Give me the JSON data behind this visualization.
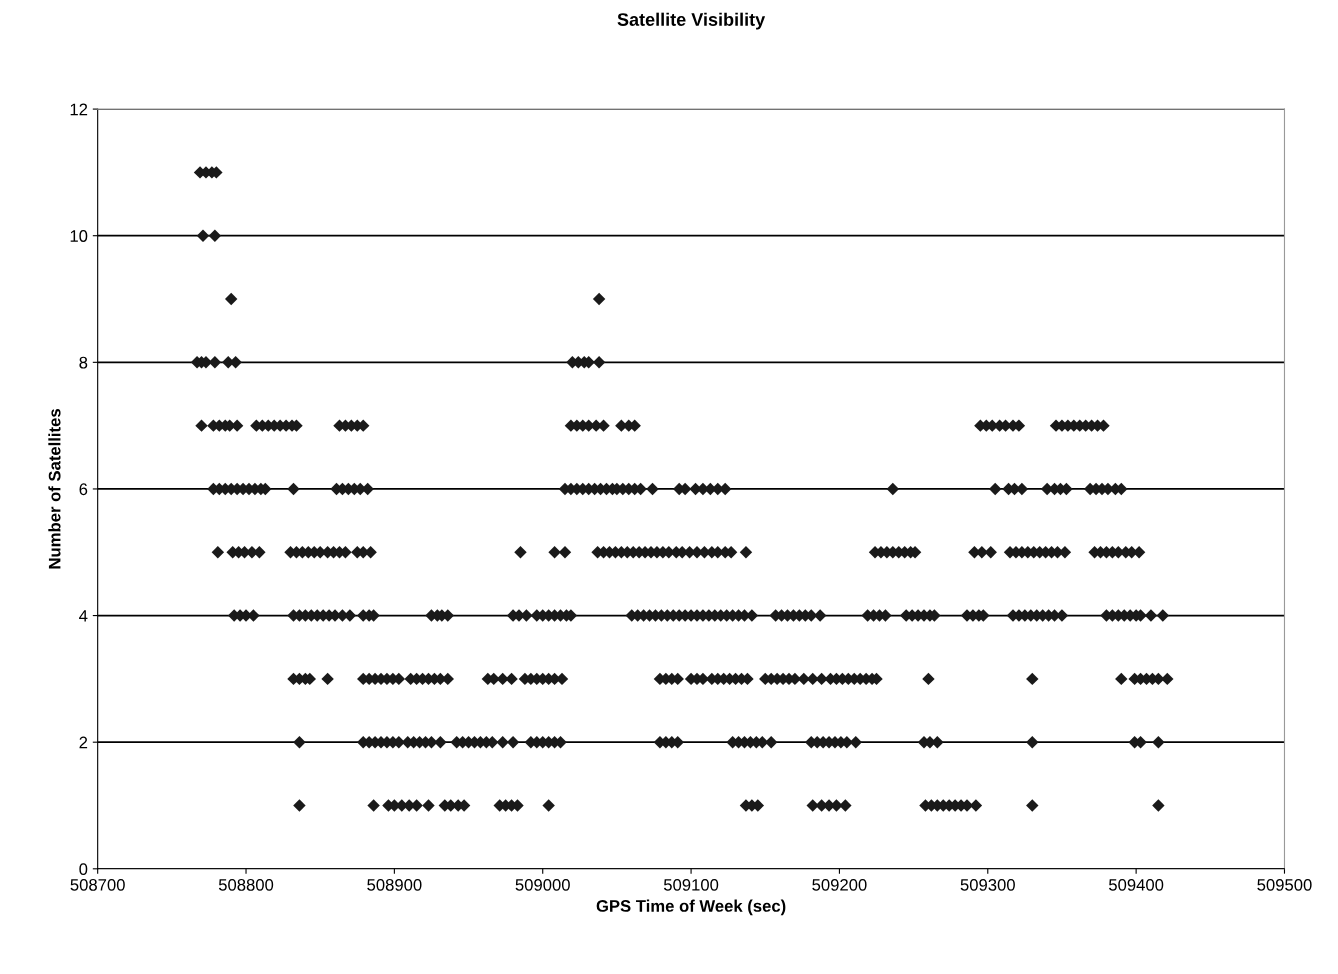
{
  "chart_data": {
    "type": "scatter",
    "title": "Satellite Visibility",
    "xlabel": "GPS Time of Week (sec)",
    "ylabel": "Number of Satellites",
    "xlim": [
      508700,
      509500
    ],
    "xticks": [
      508700,
      508800,
      508900,
      509000,
      509100,
      509200,
      509300,
      509400,
      509500
    ],
    "ylim": [
      0,
      12
    ],
    "yticks": [
      0,
      2,
      4,
      6,
      8,
      10,
      12
    ],
    "grid": "y",
    "marker": "diamond",
    "series": [
      {
        "color": "#1a1a1a",
        "x": [
          508769,
          508773,
          508777,
          508780
        ],
        "values": [
          11,
          11,
          11,
          11
        ]
      },
      {
        "color": "#1a1a1a",
        "x": [
          508771,
          508779
        ],
        "values": [
          10,
          10
        ]
      },
      {
        "color": "#1a1a1a",
        "x": [
          508790,
          509038
        ],
        "values": [
          9,
          9
        ]
      },
      {
        "color": "#1a1a1a",
        "x": [
          508767,
          508770,
          508773,
          508779,
          508788,
          508793,
          509020,
          509024,
          509028,
          509031,
          509038
        ],
        "values": [
          8,
          8,
          8,
          8,
          8,
          8,
          8,
          8,
          8,
          8,
          8
        ]
      },
      {
        "color": "#1a1a1a",
        "x": [
          508770,
          508778,
          508782,
          508786,
          508789,
          508794,
          508807,
          508811,
          508815,
          508819,
          508823,
          508827,
          508831,
          508834,
          508863,
          508867,
          508871,
          508875,
          508879,
          509019,
          509023,
          509027,
          509031,
          509036,
          509041,
          509053,
          509058,
          509062,
          509295,
          509299,
          509303,
          509308,
          509312,
          509317,
          509321,
          509346,
          509350,
          509354,
          509358,
          509362,
          509366,
          509370,
          509374,
          509378
        ],
        "values": [
          7,
          7,
          7,
          7,
          7,
          7,
          7,
          7,
          7,
          7,
          7,
          7,
          7,
          7,
          7,
          7,
          7,
          7,
          7,
          7,
          7,
          7,
          7,
          7,
          7,
          7,
          7,
          7,
          7,
          7,
          7,
          7,
          7,
          7,
          7,
          7,
          7,
          7,
          7,
          7,
          7,
          7,
          7,
          7
        ]
      },
      {
        "color": "#1a1a1a",
        "x": [
          508778,
          508782,
          508786,
          508790,
          508794,
          508798,
          508802,
          508806,
          508810,
          508813,
          508832,
          508861,
          508865,
          508869,
          508873,
          508877,
          508882,
          509015,
          509019,
          509023,
          509027,
          509031,
          509035,
          509039,
          509043,
          509047,
          509050,
          509054,
          509058,
          509062,
          509066,
          509074,
          509092,
          509096,
          509103,
          509108,
          509113,
          509118,
          509123,
          509236,
          509305,
          509314,
          509318,
          509323,
          509340,
          509345,
          509349,
          509353,
          509369,
          509373,
          509377,
          509381,
          509386,
          509390
        ],
        "values": [
          6,
          6,
          6,
          6,
          6,
          6,
          6,
          6,
          6,
          6,
          6,
          6,
          6,
          6,
          6,
          6,
          6,
          6,
          6,
          6,
          6,
          6,
          6,
          6,
          6,
          6,
          6,
          6,
          6,
          6,
          6,
          6,
          6,
          6,
          6,
          6,
          6,
          6,
          6,
          6,
          6,
          6,
          6,
          6,
          6,
          6,
          6,
          6,
          6,
          6,
          6,
          6,
          6,
          6
        ]
      },
      {
        "color": "#1a1a1a",
        "x": [
          508781,
          508791,
          508795,
          508799,
          508804,
          508809,
          508830,
          508834,
          508838,
          508842,
          508846,
          508850,
          508855,
          508859,
          508863,
          508867,
          508875,
          508879,
          508884,
          508985,
          509008,
          509015,
          509037,
          509041,
          509045,
          509049,
          509053,
          509057,
          509061,
          509065,
          509069,
          509073,
          509077,
          509081,
          509085,
          509090,
          509094,
          509099,
          509104,
          509109,
          509114,
          509118,
          509123,
          509127,
          509137,
          509224,
          509228,
          509232,
          509236,
          509240,
          509244,
          509248,
          509251,
          509291,
          509296,
          509302,
          509315,
          509319,
          509323,
          509327,
          509331,
          509335,
          509339,
          509343,
          509347,
          509352,
          509372,
          509376,
          509380,
          509384,
          509388,
          509393,
          509397,
          509402
        ],
        "values": [
          5,
          5,
          5,
          5,
          5,
          5,
          5,
          5,
          5,
          5,
          5,
          5,
          5,
          5,
          5,
          5,
          5,
          5,
          5,
          5,
          5,
          5,
          5,
          5,
          5,
          5,
          5,
          5,
          5,
          5,
          5,
          5,
          5,
          5,
          5,
          5,
          5,
          5,
          5,
          5,
          5,
          5,
          5,
          5,
          5,
          5,
          5,
          5,
          5,
          5,
          5,
          5,
          5,
          5,
          5,
          5,
          5,
          5,
          5,
          5,
          5,
          5,
          5,
          5,
          5,
          5,
          5,
          5,
          5,
          5,
          5,
          5,
          5,
          5
        ]
      },
      {
        "color": "#1a1a1a",
        "x": [
          508792,
          508796,
          508800,
          508805,
          508832,
          508836,
          508840,
          508844,
          508848,
          508852,
          508856,
          508860,
          508865,
          508870,
          508879,
          508883,
          508886,
          508925,
          508929,
          508932,
          508936,
          508980,
          508984,
          508989,
          508996,
          509000,
          509004,
          509008,
          509012,
          509016,
          509019,
          509060,
          509064,
          509068,
          509072,
          509076,
          509080,
          509084,
          509088,
          509092,
          509096,
          509100,
          509104,
          509108,
          509112,
          509116,
          509120,
          509124,
          509128,
          509132,
          509136,
          509141,
          509157,
          509161,
          509165,
          509169,
          509173,
          509177,
          509181,
          509187,
          509219,
          509223,
          509227,
          509231,
          509245,
          509249,
          509253,
          509257,
          509261,
          509264,
          509286,
          509290,
          509294,
          509297,
          509317,
          509321,
          509325,
          509329,
          509333,
          509337,
          509341,
          509345,
          509350,
          509380,
          509384,
          509388,
          509392,
          509396,
          509400,
          509403,
          509410,
          509418
        ],
        "values": [
          4,
          4,
          4,
          4,
          4,
          4,
          4,
          4,
          4,
          4,
          4,
          4,
          4,
          4,
          4,
          4,
          4,
          4,
          4,
          4,
          4,
          4,
          4,
          4,
          4,
          4,
          4,
          4,
          4,
          4,
          4,
          4,
          4,
          4,
          4,
          4,
          4,
          4,
          4,
          4,
          4,
          4,
          4,
          4,
          4,
          4,
          4,
          4,
          4,
          4,
          4,
          4,
          4,
          4,
          4,
          4,
          4,
          4,
          4,
          4,
          4,
          4,
          4,
          4,
          4,
          4,
          4,
          4,
          4,
          4,
          4,
          4,
          4,
          4,
          4,
          4,
          4,
          4,
          4,
          4,
          4,
          4,
          4,
          4,
          4,
          4,
          4,
          4,
          4,
          4,
          4,
          4
        ]
      },
      {
        "color": "#1a1a1a",
        "x": [
          508832,
          508836,
          508840,
          508843,
          508855,
          508879,
          508883,
          508887,
          508891,
          508895,
          508899,
          508903,
          508911,
          508915,
          508919,
          508923,
          508927,
          508931,
          508936,
          508963,
          508967,
          508973,
          508979,
          508988,
          508992,
          508996,
          509000,
          509004,
          509008,
          509013,
          509079,
          509083,
          509087,
          509091,
          509100,
          509104,
          509108,
          509114,
          509118,
          509122,
          509126,
          509130,
          509134,
          509138,
          509150,
          509154,
          509158,
          509162,
          509166,
          509170,
          509176,
          509182,
          509188,
          509194,
          509198,
          509202,
          509206,
          509210,
          509214,
          509218,
          509222,
          509225,
          509260,
          509330,
          509390,
          509399,
          509403,
          509407,
          509411,
          509415,
          509421
        ],
        "values": [
          3,
          3,
          3,
          3,
          3,
          3,
          3,
          3,
          3,
          3,
          3,
          3,
          3,
          3,
          3,
          3,
          3,
          3,
          3,
          3,
          3,
          3,
          3,
          3,
          3,
          3,
          3,
          3,
          3,
          3,
          3,
          3,
          3,
          3,
          3,
          3,
          3,
          3,
          3,
          3,
          3,
          3,
          3,
          3,
          3,
          3,
          3,
          3,
          3,
          3,
          3,
          3,
          3,
          3,
          3,
          3,
          3,
          3,
          3,
          3,
          3,
          3,
          3,
          3,
          3,
          3,
          3,
          3,
          3,
          3,
          3
        ]
      },
      {
        "color": "#1a1a1a",
        "x": [
          508836,
          508879,
          508883,
          508887,
          508891,
          508895,
          508899,
          508903,
          508909,
          508913,
          508917,
          508921,
          508925,
          508931,
          508942,
          508946,
          508950,
          508954,
          508958,
          508962,
          508966,
          508973,
          508980,
          508992,
          508996,
          509000,
          509004,
          509008,
          509012,
          509079,
          509083,
          509087,
          509091,
          509128,
          509132,
          509136,
          509140,
          509144,
          509148,
          509154,
          509181,
          509185,
          509189,
          509193,
          509197,
          509201,
          509205,
          509211,
          509257,
          509261,
          509266,
          509330,
          509399,
          509403,
          509415
        ],
        "values": [
          2,
          2,
          2,
          2,
          2,
          2,
          2,
          2,
          2,
          2,
          2,
          2,
          2,
          2,
          2,
          2,
          2,
          2,
          2,
          2,
          2,
          2,
          2,
          2,
          2,
          2,
          2,
          2,
          2,
          2,
          2,
          2,
          2,
          2,
          2,
          2,
          2,
          2,
          2,
          2,
          2,
          2,
          2,
          2,
          2,
          2,
          2,
          2,
          2,
          2,
          2,
          2,
          2,
          2,
          2
        ]
      },
      {
        "color": "#1a1a1a",
        "x": [
          508836,
          508886,
          508896,
          508900,
          508905,
          508910,
          508915,
          508923,
          508934,
          508938,
          508943,
          508947,
          508971,
          508975,
          508979,
          508983,
          509004,
          509137,
          509141,
          509145,
          509182,
          509188,
          509193,
          509198,
          509204,
          509258,
          509262,
          509266,
          509270,
          509274,
          509278,
          509282,
          509286,
          509292,
          509330,
          509415
        ],
        "values": [
          1,
          1,
          1,
          1,
          1,
          1,
          1,
          1,
          1,
          1,
          1,
          1,
          1,
          1,
          1,
          1,
          1,
          1,
          1,
          1,
          1,
          1,
          1,
          1,
          1,
          1,
          1,
          1,
          1,
          1,
          1,
          1,
          1,
          1,
          1,
          1
        ]
      }
    ]
  }
}
